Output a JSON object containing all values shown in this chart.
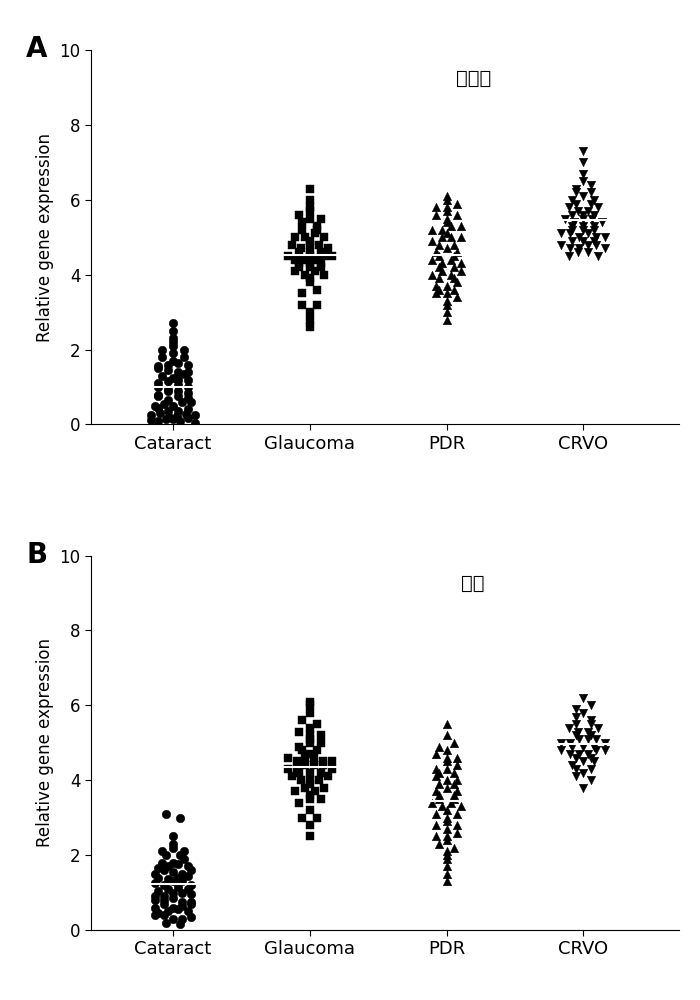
{
  "panel_A_title": "血细胞",
  "panel_B_title": "血浆",
  "panel_label_A": "A",
  "panel_label_B": "B",
  "categories": [
    "Cataract",
    "Glaucoma",
    "PDR",
    "CRVO"
  ],
  "ylabel": "Relative gene expression",
  "ylim": [
    0,
    10
  ],
  "yticks": [
    0,
    2,
    4,
    6,
    8,
    10
  ],
  "background_color": "#ffffff",
  "marker_color": "#000000",
  "panel_A": {
    "Cataract": {
      "marker": "o",
      "values": [
        0.05,
        0.08,
        0.1,
        0.12,
        0.15,
        0.18,
        0.2,
        0.22,
        0.25,
        0.28,
        0.3,
        0.35,
        0.4,
        0.45,
        0.5,
        0.55,
        0.6,
        0.65,
        0.7,
        0.75,
        0.8,
        0.85,
        0.9,
        0.95,
        1.0,
        1.05,
        1.1,
        1.15,
        1.2,
        1.25,
        1.3,
        1.35,
        1.4,
        1.45,
        1.5,
        1.55,
        1.6,
        1.65,
        1.7,
        1.8,
        1.9,
        2.0,
        2.1,
        2.2,
        2.3,
        2.5,
        2.7,
        0.15,
        0.25,
        0.35,
        0.6,
        0.75,
        1.0,
        1.2,
        1.4,
        1.6,
        1.8,
        2.0,
        0.5,
        0.9
      ]
    },
    "Glaucoma": {
      "marker": "s",
      "values": [
        2.6,
        2.8,
        3.0,
        3.2,
        3.5,
        3.8,
        4.0,
        4.0,
        4.1,
        4.2,
        4.2,
        4.3,
        4.3,
        4.4,
        4.4,
        4.5,
        4.5,
        4.5,
        4.6,
        4.6,
        4.7,
        4.7,
        4.8,
        4.8,
        4.9,
        5.0,
        5.0,
        5.1,
        5.2,
        5.3,
        5.4,
        5.5,
        5.6,
        5.7,
        5.8,
        6.0,
        6.3,
        4.1,
        4.2,
        4.3,
        4.5,
        4.6,
        4.8,
        5.0,
        5.2,
        3.6,
        3.9,
        4.4,
        5.5,
        3.2
      ]
    },
    "PDR": {
      "marker": "^",
      "values": [
        2.8,
        3.0,
        3.2,
        3.3,
        3.4,
        3.5,
        3.6,
        3.7,
        3.8,
        3.9,
        4.0,
        4.1,
        4.2,
        4.3,
        4.4,
        4.5,
        4.5,
        4.6,
        4.7,
        4.8,
        4.9,
        5.0,
        5.0,
        5.1,
        5.2,
        5.3,
        5.4,
        5.5,
        5.6,
        5.7,
        5.8,
        5.9,
        6.0,
        6.1,
        3.5,
        3.7,
        4.0,
        4.3,
        4.6,
        5.0,
        5.3,
        5.6,
        4.1,
        3.9,
        4.4,
        4.8,
        5.2,
        3.6,
        5.8,
        4.2
      ]
    },
    "CRVO": {
      "marker": "v",
      "values": [
        4.5,
        4.6,
        4.7,
        4.7,
        4.8,
        4.8,
        4.9,
        4.9,
        5.0,
        5.0,
        5.1,
        5.1,
        5.2,
        5.2,
        5.3,
        5.3,
        5.4,
        5.5,
        5.5,
        5.6,
        5.6,
        5.7,
        5.8,
        5.9,
        6.0,
        6.1,
        6.2,
        6.3,
        6.5,
        6.7,
        7.0,
        7.3,
        4.6,
        4.9,
        5.1,
        5.4,
        5.7,
        6.0,
        5.2,
        4.8,
        5.0,
        5.3,
        5.6,
        6.2,
        4.7,
        5.8,
        6.4,
        5.5,
        4.5,
        5.9
      ]
    }
  },
  "panel_B": {
    "Cataract": {
      "marker": "o",
      "values": [
        0.15,
        0.2,
        0.3,
        0.35,
        0.4,
        0.45,
        0.5,
        0.55,
        0.6,
        0.65,
        0.7,
        0.75,
        0.8,
        0.85,
        0.9,
        0.95,
        1.0,
        1.05,
        1.1,
        1.15,
        1.2,
        1.25,
        1.3,
        1.35,
        1.4,
        1.45,
        1.5,
        1.55,
        1.6,
        1.65,
        1.7,
        1.75,
        1.8,
        1.9,
        2.0,
        2.1,
        2.2,
        2.3,
        2.5,
        3.0,
        3.1,
        0.6,
        0.9,
        1.2,
        1.5,
        1.8,
        2.1,
        0.4,
        0.75,
        1.0,
        1.3,
        1.6,
        0.5,
        0.8,
        1.1,
        1.4,
        1.7,
        2.0,
        0.7,
        0.3
      ]
    },
    "Glaucoma": {
      "marker": "s",
      "values": [
        2.5,
        2.8,
        3.0,
        3.2,
        3.4,
        3.5,
        3.6,
        3.7,
        3.8,
        3.9,
        4.0,
        4.0,
        4.1,
        4.1,
        4.2,
        4.2,
        4.3,
        4.3,
        4.4,
        4.4,
        4.5,
        4.5,
        4.6,
        4.6,
        4.7,
        4.8,
        4.9,
        5.0,
        5.1,
        5.2,
        5.3,
        5.4,
        5.5,
        5.6,
        5.8,
        6.0,
        6.1,
        4.0,
        4.2,
        4.4,
        4.6,
        3.8,
        4.8,
        5.0,
        3.5,
        3.0,
        4.3,
        4.5,
        5.2,
        3.7
      ]
    },
    "PDR": {
      "marker": "^",
      "values": [
        1.3,
        1.5,
        1.7,
        1.9,
        2.0,
        2.1,
        2.2,
        2.3,
        2.4,
        2.5,
        2.6,
        2.7,
        2.8,
        2.9,
        3.0,
        3.1,
        3.2,
        3.3,
        3.4,
        3.5,
        3.5,
        3.6,
        3.7,
        3.8,
        3.9,
        4.0,
        4.1,
        4.2,
        4.3,
        4.4,
        4.5,
        4.6,
        4.7,
        4.8,
        4.9,
        5.0,
        5.2,
        5.5,
        3.3,
        3.6,
        3.9,
        4.2,
        2.5,
        2.8,
        3.1,
        3.4,
        3.7,
        4.0,
        4.3,
        4.6
      ]
    },
    "CRVO": {
      "marker": "v",
      "values": [
        3.8,
        4.0,
        4.1,
        4.2,
        4.3,
        4.4,
        4.5,
        4.6,
        4.7,
        4.7,
        4.8,
        4.8,
        4.9,
        4.9,
        5.0,
        5.0,
        5.1,
        5.1,
        5.2,
        5.2,
        5.3,
        5.4,
        5.5,
        5.6,
        5.8,
        5.9,
        6.0,
        4.5,
        4.7,
        4.9,
        5.1,
        5.3,
        5.5,
        4.3,
        4.6,
        4.8,
        5.0,
        5.4,
        5.7,
        6.2
      ]
    }
  }
}
